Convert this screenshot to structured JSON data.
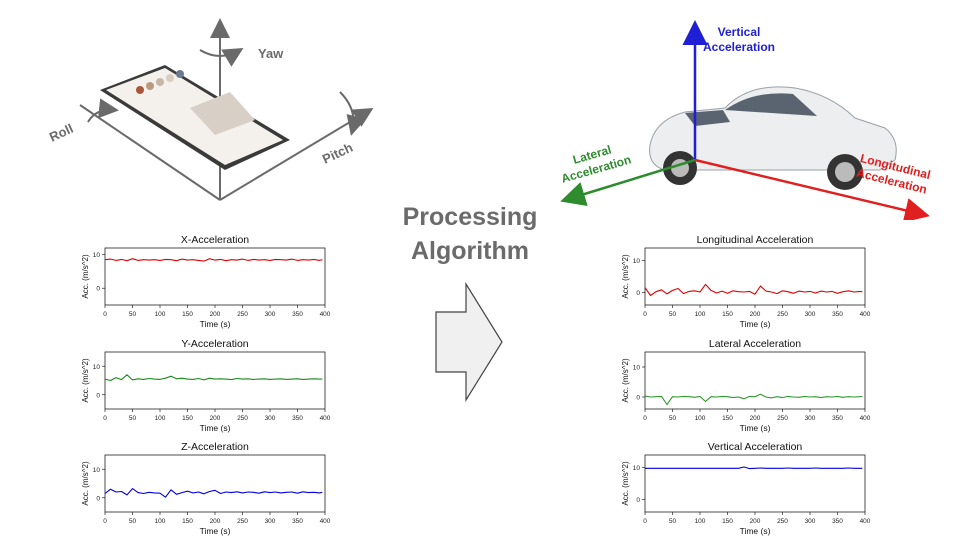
{
  "phone_diagram": {
    "axis_labels": {
      "yaw": "Yaw",
      "roll": "Roll",
      "pitch": "Pitch"
    }
  },
  "car_diagram": {
    "vertical_label": [
      "Vertical",
      "Acceleration"
    ],
    "lateral_label": [
      "Lateral",
      "Acceleration"
    ],
    "longitudinal_label": [
      "Longitudinal",
      "Acceleration"
    ],
    "colors": {
      "vertical": "#1f1fd6",
      "lateral": "#2e8b2e",
      "longitudinal": "#e02020"
    }
  },
  "processing": {
    "line1": "Processing",
    "line2": "Algorithm"
  },
  "chart_data": [
    {
      "type": "line",
      "title": "X-Acceleration",
      "xlabel": "Time (s)",
      "ylabel": "Acc. (m/s^2)",
      "x_ticks": [
        "0",
        "50",
        "100",
        "150",
        "200",
        "250",
        "300",
        "350",
        "400"
      ],
      "y_ticks": [
        "0",
        "10"
      ],
      "xlim": [
        0,
        400
      ],
      "ylim": [
        -5,
        12
      ],
      "color": "#e00000",
      "series": [
        {
          "x": [
            0,
            10,
            20,
            30,
            40,
            50,
            60,
            70,
            80,
            90,
            100,
            110,
            120,
            130,
            140,
            150,
            160,
            170,
            180,
            190,
            200,
            210,
            220,
            230,
            240,
            250,
            260,
            270,
            280,
            290,
            300,
            310,
            320,
            330,
            340,
            350,
            360,
            370,
            380,
            390,
            395
          ],
          "y": [
            8.5,
            8.7,
            8.3,
            8.6,
            8.2,
            8.8,
            8.3,
            8.5,
            8.4,
            8.5,
            8.3,
            8.6,
            8.5,
            8.2,
            8.7,
            8.4,
            8.5,
            8.3,
            8.1,
            8.8,
            8.4,
            8.6,
            8.2,
            8.5,
            8.4,
            8.7,
            8.3,
            8.6,
            8.4,
            8.5,
            8.3,
            8.6,
            8.5,
            8.4,
            8.7,
            8.3,
            8.5,
            8.4,
            8.6,
            8.3,
            8.5
          ]
        }
      ]
    },
    {
      "type": "line",
      "title": "Y-Acceleration",
      "xlabel": "Time (s)",
      "ylabel": "Acc. (m/s^2)",
      "x_ticks": [
        "0",
        "50",
        "100",
        "150",
        "200",
        "250",
        "300",
        "350",
        "400"
      ],
      "y_ticks": [
        "0",
        "10"
      ],
      "xlim": [
        0,
        400
      ],
      "ylim": [
        -5,
        15
      ],
      "color": "#1a8a1a",
      "series": [
        {
          "x": [
            0,
            10,
            20,
            30,
            40,
            50,
            60,
            70,
            80,
            90,
            100,
            110,
            120,
            130,
            140,
            150,
            160,
            170,
            180,
            190,
            200,
            210,
            220,
            230,
            240,
            250,
            260,
            270,
            280,
            290,
            300,
            310,
            320,
            330,
            340,
            350,
            360,
            370,
            380,
            390,
            395
          ],
          "y": [
            5.5,
            5.0,
            6.0,
            5.3,
            7.0,
            5.2,
            5.6,
            5.4,
            5.7,
            5.5,
            5.4,
            5.8,
            6.5,
            5.6,
            5.8,
            5.5,
            5.4,
            5.7,
            5.2,
            5.8,
            5.5,
            5.6,
            5.5,
            5.3,
            5.7,
            5.5,
            5.6,
            5.4,
            5.5,
            5.6,
            5.4,
            5.5,
            5.6,
            5.4,
            5.5,
            5.6,
            5.4,
            5.5,
            5.6,
            5.5,
            5.5
          ]
        }
      ]
    },
    {
      "type": "line",
      "title": "Z-Acceleration",
      "xlabel": "Time (s)",
      "ylabel": "Acc. (m/s^2)",
      "x_ticks": [
        "0",
        "50",
        "100",
        "150",
        "200",
        "250",
        "300",
        "350",
        "400"
      ],
      "y_ticks": [
        "0",
        "10"
      ],
      "xlim": [
        0,
        400
      ],
      "ylim": [
        -5,
        15
      ],
      "color": "#0000e0",
      "series": [
        {
          "x": [
            0,
            10,
            20,
            30,
            40,
            50,
            60,
            70,
            80,
            90,
            100,
            110,
            120,
            130,
            140,
            150,
            160,
            170,
            180,
            190,
            200,
            210,
            220,
            230,
            240,
            250,
            260,
            270,
            280,
            290,
            300,
            310,
            320,
            330,
            340,
            350,
            360,
            370,
            380,
            390,
            395
          ],
          "y": [
            1.5,
            3.0,
            2.0,
            2.2,
            1.0,
            3.2,
            1.8,
            1.5,
            1.9,
            1.7,
            1.6,
            0.2,
            2.8,
            1.2,
            1.8,
            2.3,
            1.7,
            2.0,
            1.4,
            2.2,
            2.6,
            1.5,
            2.0,
            1.8,
            2.1,
            1.7,
            2.0,
            1.9,
            1.6,
            2.1,
            1.8,
            2.0,
            1.7,
            1.9,
            2.0,
            1.6,
            2.1,
            1.8,
            1.9,
            1.7,
            1.9
          ]
        }
      ]
    },
    {
      "type": "line",
      "title": "Longitudinal Acceleration",
      "xlabel": "Time (s)",
      "ylabel": "Acc. (m/s^2)",
      "x_ticks": [
        "0",
        "50",
        "100",
        "150",
        "200",
        "250",
        "300",
        "350",
        "400"
      ],
      "y_ticks": [
        "0",
        "10"
      ],
      "xlim": [
        0,
        400
      ],
      "ylim": [
        -4,
        14
      ],
      "color": "#e00000",
      "series": [
        {
          "x": [
            0,
            10,
            20,
            30,
            40,
            50,
            60,
            70,
            80,
            90,
            100,
            110,
            120,
            130,
            140,
            150,
            160,
            170,
            180,
            190,
            200,
            210,
            220,
            230,
            240,
            250,
            260,
            270,
            280,
            290,
            300,
            310,
            320,
            330,
            340,
            350,
            360,
            370,
            380,
            390,
            395
          ],
          "y": [
            1.5,
            -1.0,
            0.2,
            0.8,
            -0.5,
            0.6,
            1.2,
            -0.4,
            0.3,
            0.5,
            0.1,
            2.5,
            0.6,
            -0.2,
            0.4,
            -0.3,
            0.5,
            0.2,
            0.1,
            0.3,
            -0.6,
            2.0,
            0.4,
            0.1,
            -0.4,
            0.5,
            0.2,
            -0.3,
            0.4,
            0.1,
            0.3,
            -0.2,
            0.4,
            0.1,
            0.3,
            -0.3,
            0.2,
            0.5,
            0.1,
            0.3,
            0.2
          ]
        }
      ]
    },
    {
      "type": "line",
      "title": "Lateral Acceleration",
      "xlabel": "Time (s)",
      "ylabel": "Acc. (m/s^2)",
      "x_ticks": [
        "0",
        "50",
        "100",
        "150",
        "200",
        "250",
        "300",
        "350",
        "400"
      ],
      "y_ticks": [
        "0",
        "10"
      ],
      "xlim": [
        0,
        400
      ],
      "ylim": [
        -4,
        15
      ],
      "color": "#2e9a2e",
      "series": [
        {
          "x": [
            0,
            10,
            20,
            30,
            40,
            50,
            60,
            70,
            80,
            90,
            100,
            110,
            120,
            130,
            140,
            150,
            160,
            170,
            180,
            190,
            200,
            210,
            220,
            230,
            240,
            250,
            260,
            270,
            280,
            290,
            300,
            310,
            320,
            330,
            340,
            350,
            360,
            370,
            380,
            390,
            395
          ],
          "y": [
            0.3,
            0.0,
            0.1,
            0.2,
            -2.5,
            0.1,
            0.0,
            0.2,
            0.1,
            -0.1,
            0.2,
            -1.5,
            0.1,
            0.0,
            0.2,
            0.1,
            -0.2,
            0.0,
            -0.6,
            0.2,
            0.1,
            0.9,
            0.0,
            -0.3,
            0.1,
            -0.2,
            0.2,
            0.0,
            -0.1,
            0.2,
            0.0,
            0.1,
            -0.2,
            0.1,
            0.0,
            0.2,
            -0.1,
            0.1,
            0.0,
            0.1,
            0.2
          ]
        }
      ]
    },
    {
      "type": "line",
      "title": "Vertical Acceleration",
      "xlabel": "Time (s)",
      "ylabel": "Acc. (m/s^2)",
      "x_ticks": [
        "0",
        "50",
        "100",
        "150",
        "200",
        "250",
        "300",
        "350",
        "400"
      ],
      "y_ticks": [
        "0",
        "10"
      ],
      "xlim": [
        0,
        400
      ],
      "ylim": [
        -4,
        14
      ],
      "color": "#0000e0",
      "series": [
        {
          "x": [
            0,
            10,
            20,
            30,
            40,
            50,
            60,
            70,
            80,
            90,
            100,
            110,
            120,
            130,
            140,
            150,
            160,
            170,
            180,
            190,
            200,
            210,
            220,
            230,
            240,
            250,
            260,
            270,
            280,
            290,
            300,
            310,
            320,
            330,
            340,
            350,
            360,
            370,
            380,
            390,
            395
          ],
          "y": [
            9.8,
            9.8,
            9.8,
            9.8,
            9.8,
            9.8,
            9.8,
            9.8,
            9.8,
            9.8,
            9.8,
            9.8,
            9.8,
            9.8,
            9.8,
            9.8,
            9.8,
            9.8,
            10.2,
            9.7,
            9.8,
            9.9,
            9.8,
            9.8,
            9.8,
            9.8,
            9.9,
            9.8,
            9.8,
            9.8,
            9.8,
            9.9,
            9.8,
            9.8,
            9.8,
            9.8,
            9.8,
            9.9,
            9.8,
            9.8,
            9.8
          ]
        }
      ]
    }
  ]
}
